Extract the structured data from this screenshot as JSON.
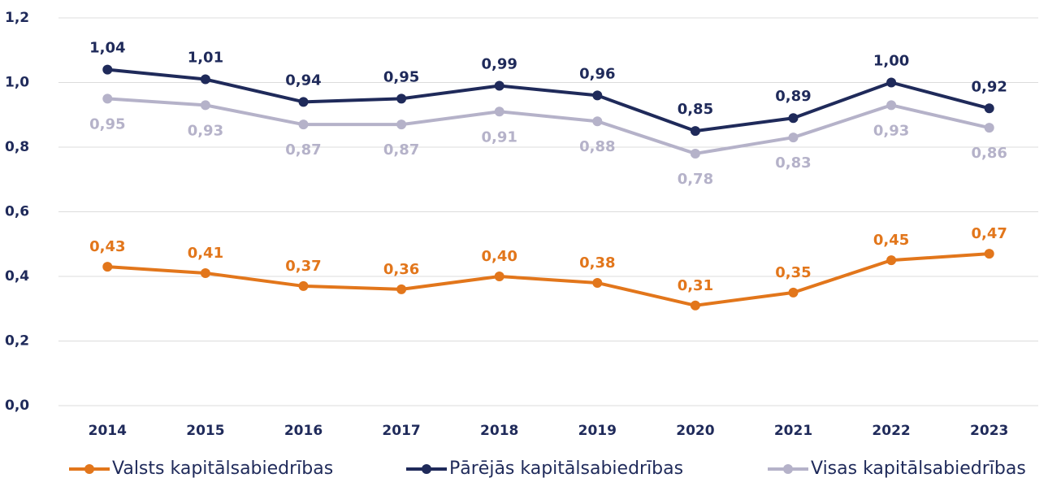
{
  "chart_data": {
    "type": "line",
    "categories": [
      "2014",
      "2015",
      "2016",
      "2017",
      "2018",
      "2019",
      "2020",
      "2021",
      "2022",
      "2023"
    ],
    "series": [
      {
        "name": "Valsts kapitālsabiedrības",
        "color": "#e2761b",
        "values": [
          0.43,
          0.41,
          0.37,
          0.36,
          0.4,
          0.38,
          0.31,
          0.35,
          0.45,
          0.47
        ],
        "value_labels": [
          "0,43",
          "0,41",
          "0,37",
          "0,36",
          "0,40",
          "0,38",
          "0,31",
          "0,35",
          "0,45",
          "0,47"
        ]
      },
      {
        "name": "Pārējās kapitālsabiedrības",
        "color": "#1f2a5a",
        "values": [
          1.04,
          1.01,
          0.94,
          0.95,
          0.99,
          0.96,
          0.85,
          0.89,
          1.0,
          0.92
        ],
        "value_labels": [
          "1,04",
          "1,01",
          "0,94",
          "0,95",
          "0,99",
          "0,96",
          "0,85",
          "0,89",
          "1,00",
          "0,92"
        ]
      },
      {
        "name": "Visas kapitālsabiedrības",
        "color": "#b5b2c9",
        "values": [
          0.95,
          0.93,
          0.87,
          0.87,
          0.91,
          0.88,
          0.78,
          0.83,
          0.93,
          0.86
        ],
        "value_labels": [
          "0,95",
          "0,93",
          "0,87",
          "0,87",
          "0,91",
          "0,88",
          "0,78",
          "0,83",
          "0,93",
          "0,86"
        ]
      }
    ],
    "ylim": [
      0,
      1.2
    ],
    "yticks": [
      {
        "value": 0,
        "label": "0,0"
      },
      {
        "value": 0.2,
        "label": "0,2"
      },
      {
        "value": 0.4,
        "label": "0,4"
      },
      {
        "value": 0.6,
        "label": "0,6"
      },
      {
        "value": 0.8,
        "label": "0,8"
      },
      {
        "value": 1.0,
        "label": "1,0"
      },
      {
        "value": 1.2,
        "label": "1,2"
      }
    ],
    "grid": true,
    "legend": "bottom"
  }
}
